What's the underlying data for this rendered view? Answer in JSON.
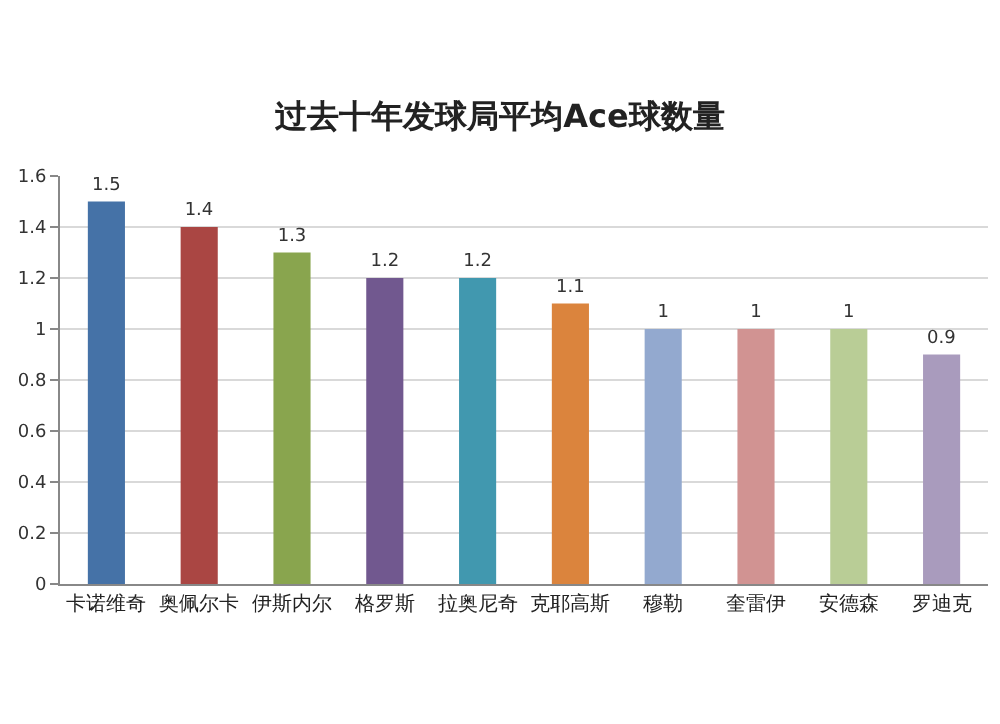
{
  "chart_data": {
    "type": "bar",
    "title": "过去十年发球局平均Ace球数量",
    "categories": [
      "卡诺维奇",
      "奥佩尔卡",
      "伊斯内尔",
      "格罗斯",
      "拉奥尼奇",
      "克耶高斯",
      "穆勒",
      "奎雷伊",
      "安德森",
      "罗迪克"
    ],
    "values": [
      1.5,
      1.4,
      1.3,
      1.2,
      1.2,
      1.1,
      1,
      1,
      1,
      0.9
    ],
    "colors": [
      "#4572a7",
      "#aa4643",
      "#89a54e",
      "#71588f",
      "#4198af",
      "#db843d",
      "#93a9cf",
      "#d19392",
      "#b9cd96",
      "#a99bbd"
    ],
    "ylim": [
      0,
      1.6
    ],
    "yticks": [
      0,
      0.2,
      0.4,
      0.6,
      0.8,
      1,
      1.2,
      1.4,
      1.6
    ],
    "grid": "y",
    "data_labels": true
  }
}
